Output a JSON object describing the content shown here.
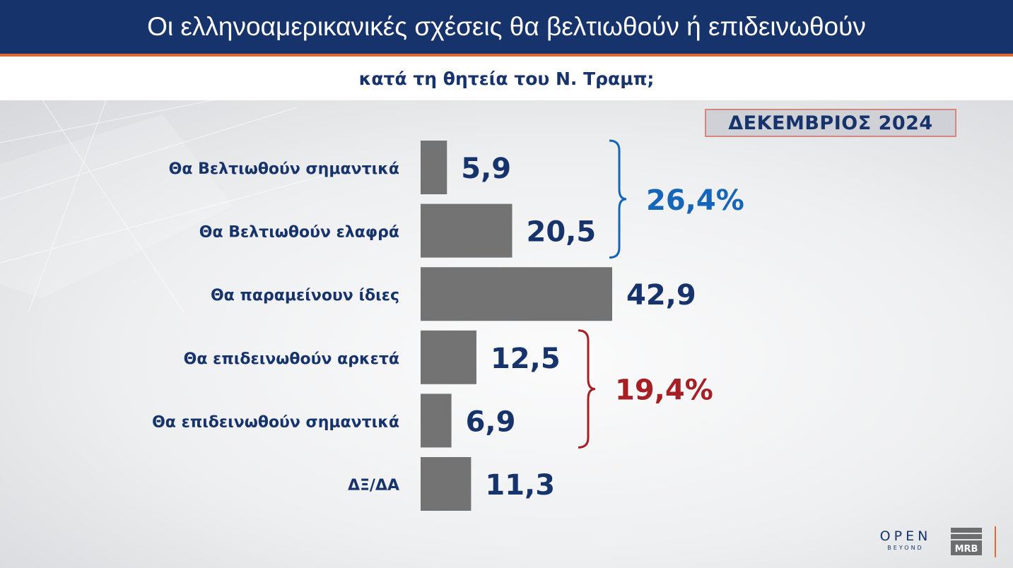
{
  "title": "Οι ελληνοαμερικανικές σχέσεις θα βελτιωθούν ή επιδεινωθούν",
  "subtitle": "κατά τη θητεία του Ν. Τραμπ;",
  "badge": "ΔΕΚΕΜΒΡΙΟΣ 2024",
  "colors": {
    "title_bg": "#17336b",
    "accent": "#e06a33",
    "bar": "#737373",
    "label": "#17336b",
    "improve_group": "#1565b8",
    "worsen_group": "#a51f24"
  },
  "chart_data": {
    "type": "bar",
    "orientation": "horizontal",
    "categories": [
      "Θα Βελτιωθούν σημαντικά",
      "Θα Βελτιωθούν ελαφρά",
      "Θα παραμείνουν ίδιες",
      "Θα επιδεινωθούν αρκετά",
      "Θα επιδεινωθούν σημαντικά",
      "ΔΞ/ΔΑ"
    ],
    "values": [
      5.9,
      20.5,
      42.9,
      12.5,
      6.9,
      11.3
    ],
    "value_labels": [
      "5,9",
      "20,5",
      "42,9",
      "12,5",
      "6,9",
      "11,3"
    ],
    "xlim": [
      0,
      42.9
    ],
    "grid": false,
    "groups": [
      {
        "label": "26,4%",
        "categories": [
          0,
          1
        ],
        "color": "#1565b8"
      },
      {
        "label": "19,4%",
        "categories": [
          3,
          4
        ],
        "color": "#a51f24"
      }
    ]
  },
  "logos": {
    "open_big": "OPEN",
    "open_small": "BEYOND",
    "mrb": "MRB"
  }
}
